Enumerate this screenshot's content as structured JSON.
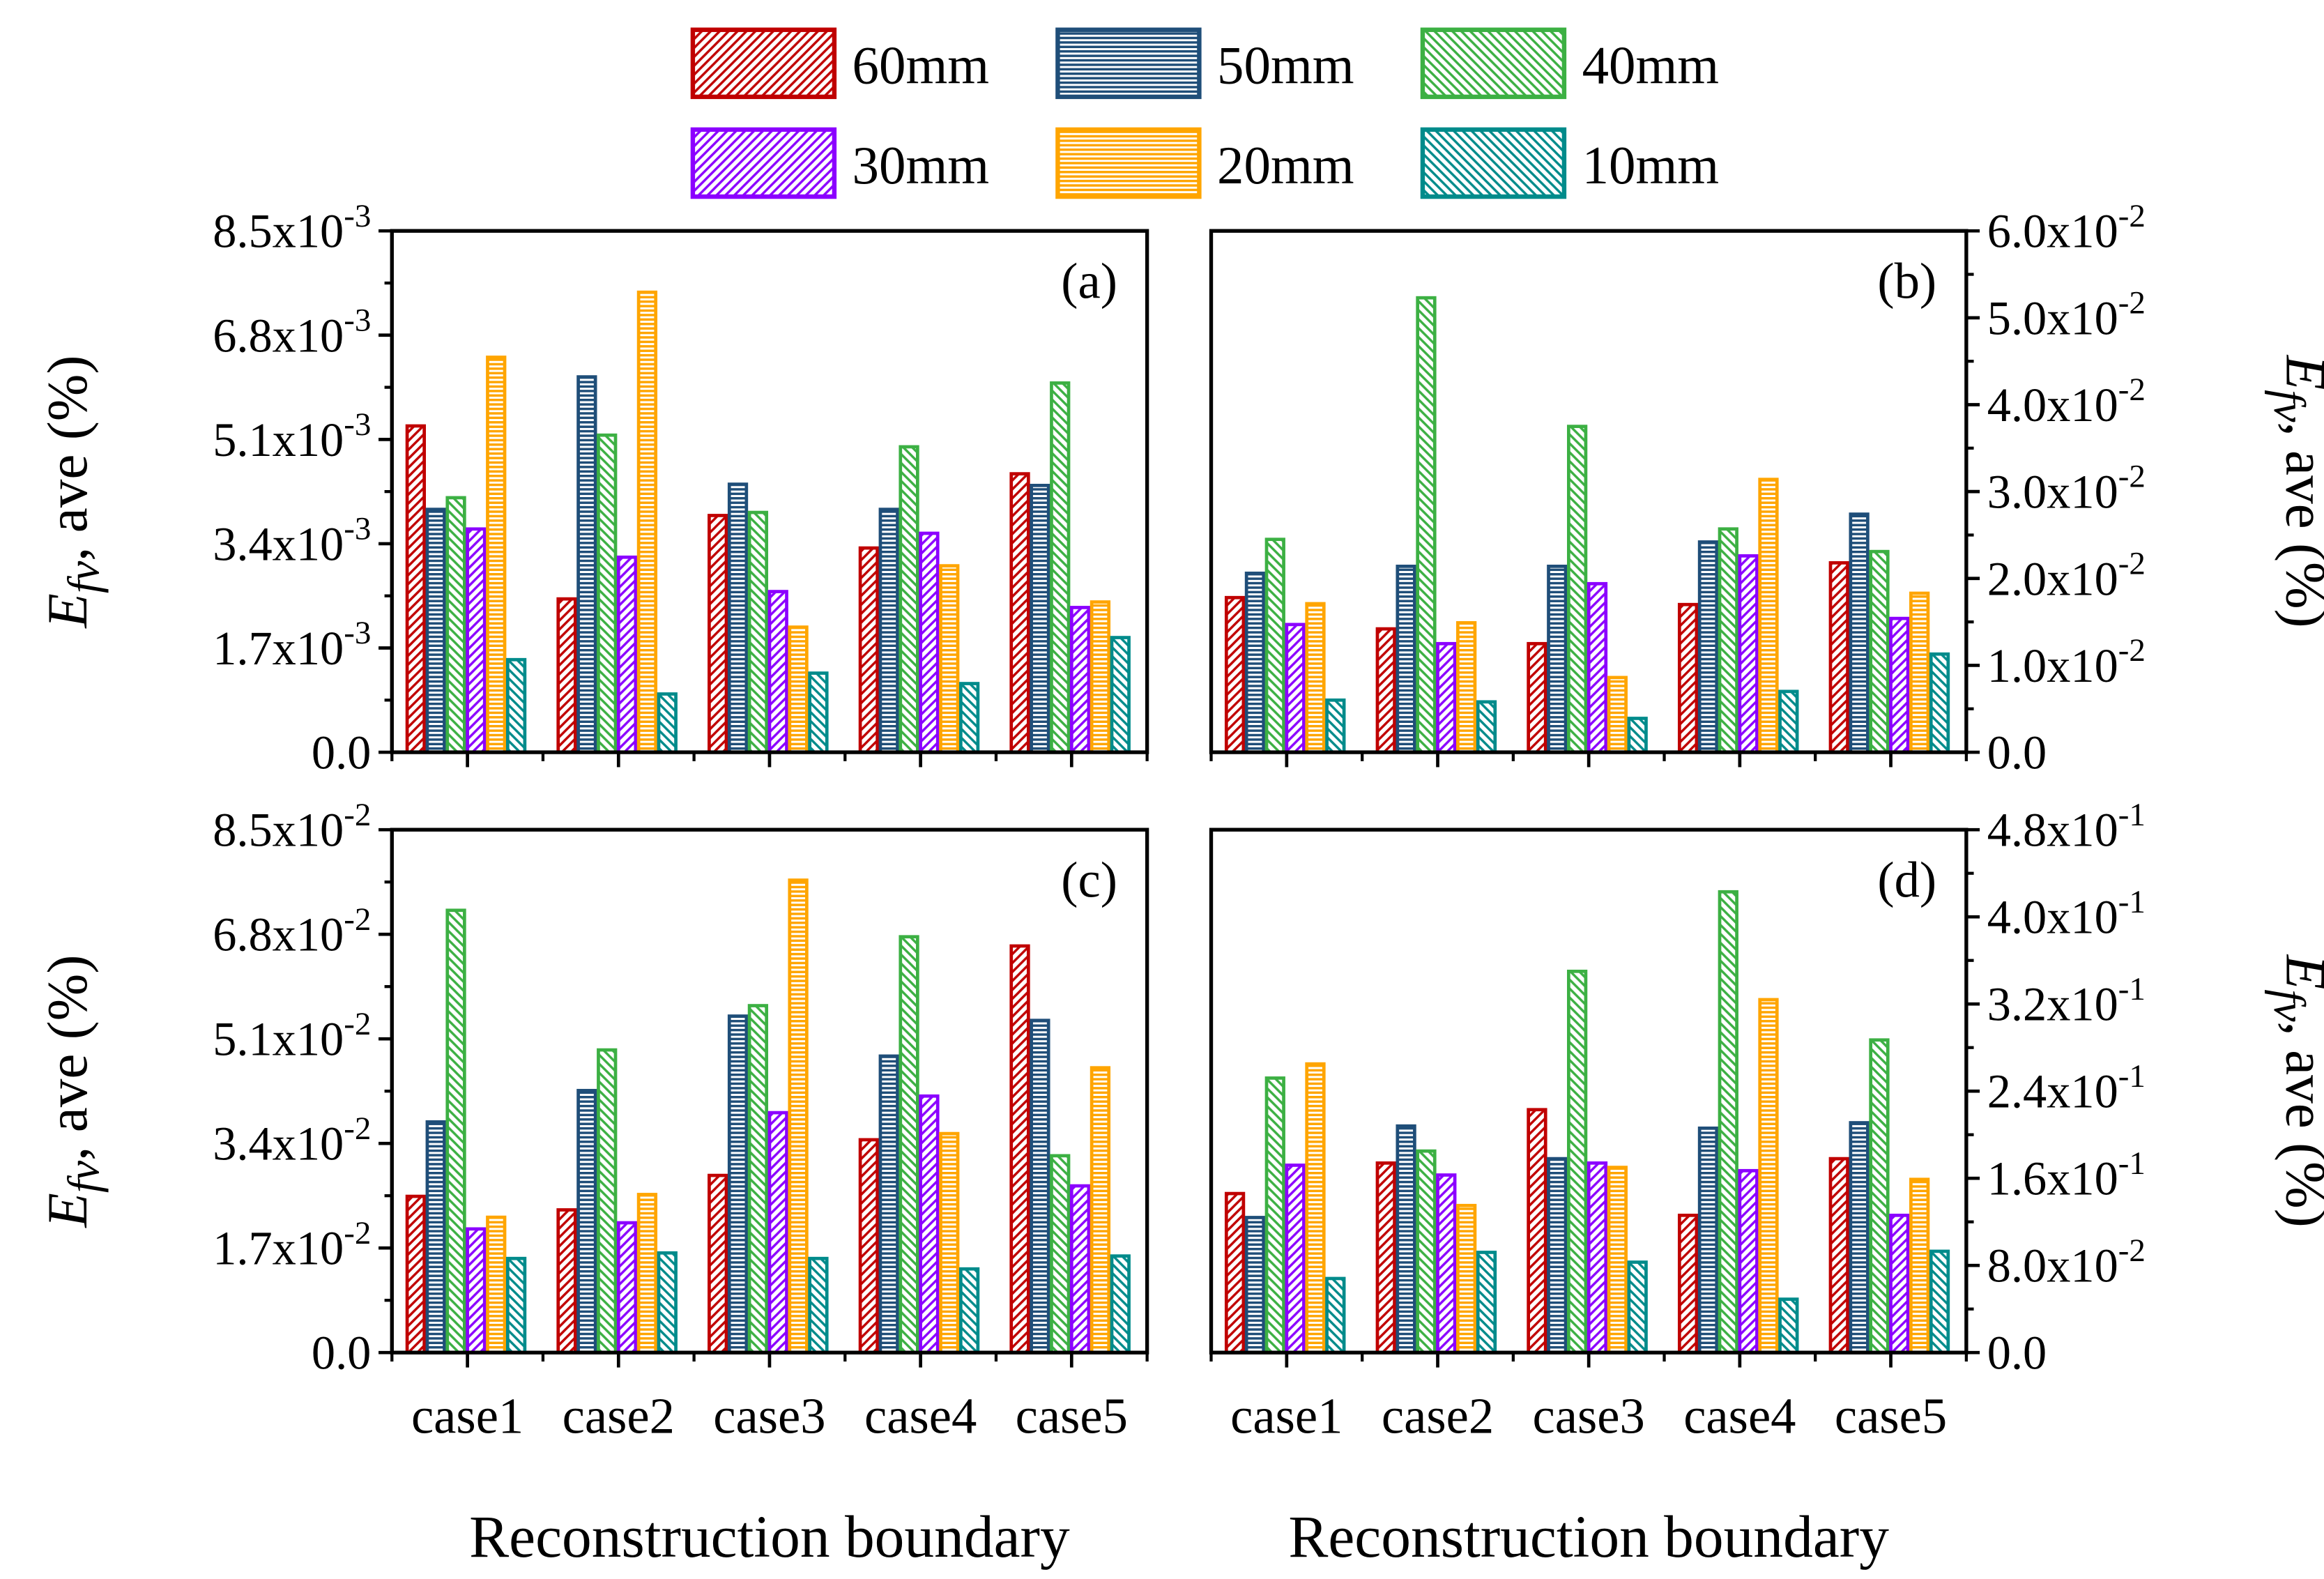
{
  "chart_data": {
    "type": "bar",
    "categories": [
      "case1",
      "case2",
      "case3",
      "case4",
      "case5"
    ],
    "xlabel": "Reconstruction boundary",
    "ylabel": {
      "main": "E",
      "sub": "fv",
      "rest": ", ave (%)"
    },
    "legend": {
      "placement": "top-center",
      "series": [
        {
          "name": "60mm",
          "color": "#c00000",
          "hatch": "diag-up"
        },
        {
          "name": "50mm",
          "color": "#1f4e79",
          "hatch": "horizontal"
        },
        {
          "name": "40mm",
          "color": "#3cb043",
          "hatch": "diag-down"
        },
        {
          "name": "30mm",
          "color": "#8b00ff",
          "hatch": "diag-up"
        },
        {
          "name": "20mm",
          "color": "#ffa500",
          "hatch": "horizontal"
        },
        {
          "name": "10mm",
          "color": "#008b8b",
          "hatch": "diag-down"
        }
      ]
    },
    "panels": [
      {
        "label": "(a)",
        "axis_side": "left",
        "unit_exp": -3,
        "ylim": [
          0,
          8.5
        ],
        "ticks": [
          {
            "m": "0.0",
            "e": ""
          },
          {
            "m": "1.7x10",
            "e": "-3"
          },
          {
            "m": "3.4x10",
            "e": "-3"
          },
          {
            "m": "5.1x10",
            "e": "-3"
          },
          {
            "m": "6.8x10",
            "e": "-3"
          },
          {
            "m": "8.5x10",
            "e": "-3"
          }
        ],
        "tick_values": [
          0,
          1.7,
          3.4,
          5.1,
          6.8,
          8.5
        ],
        "series": [
          [
            5.32,
            2.5,
            3.86,
            3.33,
            4.54
          ],
          [
            3.96,
            6.12,
            4.37,
            3.96,
            4.35
          ],
          [
            4.15,
            5.17,
            3.91,
            4.98,
            6.02
          ],
          [
            3.64,
            3.18,
            2.62,
            3.57,
            2.36
          ],
          [
            6.44,
            7.5,
            2.04,
            3.04,
            2.45
          ],
          [
            1.51,
            0.95,
            1.29,
            1.12,
            1.87
          ]
        ]
      },
      {
        "label": "(b)",
        "axis_side": "right",
        "unit_exp": -2,
        "ylim": [
          0,
          6.0
        ],
        "ticks": [
          {
            "m": "0.0",
            "e": ""
          },
          {
            "m": "1.0x10",
            "e": "-2"
          },
          {
            "m": "2.0x10",
            "e": "-2"
          },
          {
            "m": "3.0x10",
            "e": "-2"
          },
          {
            "m": "4.0x10",
            "e": "-2"
          },
          {
            "m": "5.0x10",
            "e": "-2"
          },
          {
            "m": "6.0x10",
            "e": "-2"
          }
        ],
        "tick_values": [
          0,
          1,
          2,
          3,
          4,
          5,
          6
        ],
        "series": [
          [
            1.78,
            1.42,
            1.25,
            1.7,
            2.18
          ],
          [
            2.06,
            2.14,
            2.14,
            2.42,
            2.74
          ],
          [
            2.45,
            5.23,
            3.75,
            2.57,
            2.31
          ],
          [
            1.47,
            1.25,
            1.94,
            2.26,
            1.54
          ],
          [
            1.71,
            1.49,
            0.86,
            3.14,
            1.83
          ],
          [
            0.6,
            0.58,
            0.39,
            0.7,
            1.13
          ]
        ]
      },
      {
        "label": "(c)",
        "axis_side": "left",
        "unit_exp": -2,
        "ylim": [
          0,
          8.5
        ],
        "ticks": [
          {
            "m": "0.0",
            "e": ""
          },
          {
            "m": "1.7x10",
            "e": "-2"
          },
          {
            "m": "3.4x10",
            "e": "-2"
          },
          {
            "m": "5.1x10",
            "e": "-2"
          },
          {
            "m": "6.8x10",
            "e": "-2"
          },
          {
            "m": "8.5x10",
            "e": "-2"
          }
        ],
        "tick_values": [
          0,
          1.7,
          3.4,
          5.1,
          6.8,
          8.5
        ],
        "series": [
          [
            2.54,
            2.32,
            2.88,
            3.46,
            6.61
          ],
          [
            3.75,
            4.26,
            5.47,
            4.82,
            5.4
          ],
          [
            7.19,
            4.92,
            5.64,
            6.76,
            3.2
          ],
          [
            2.01,
            2.11,
            3.9,
            4.17,
            2.71
          ],
          [
            2.2,
            2.57,
            7.68,
            3.56,
            4.63
          ],
          [
            1.53,
            1.62,
            1.53,
            1.36,
            1.57
          ]
        ]
      },
      {
        "label": "(d)",
        "axis_side": "right",
        "unit_exp": -1,
        "ylim": [
          0,
          4.8
        ],
        "ticks": [
          {
            "m": "0.0",
            "e": ""
          },
          {
            "m": "8.0x10",
            "e": "-2"
          },
          {
            "m": "1.6x10",
            "e": "-1"
          },
          {
            "m": "2.4x10",
            "e": "-1"
          },
          {
            "m": "3.2x10",
            "e": "-1"
          },
          {
            "m": "4.0x10",
            "e": "-1"
          },
          {
            "m": "4.8x10",
            "e": "-1"
          }
        ],
        "tick_values": [
          0,
          0.8,
          1.6,
          2.4,
          3.2,
          4.0,
          4.8
        ],
        "series": [
          [
            1.46,
            1.74,
            2.23,
            1.26,
            1.78
          ],
          [
            1.24,
            2.08,
            1.78,
            2.06,
            2.11
          ],
          [
            2.52,
            1.85,
            3.5,
            4.23,
            2.87
          ],
          [
            1.72,
            1.63,
            1.74,
            1.67,
            1.26
          ],
          [
            2.65,
            1.35,
            1.7,
            3.24,
            1.59
          ],
          [
            0.68,
            0.92,
            0.83,
            0.49,
            0.93
          ]
        ]
      }
    ]
  }
}
